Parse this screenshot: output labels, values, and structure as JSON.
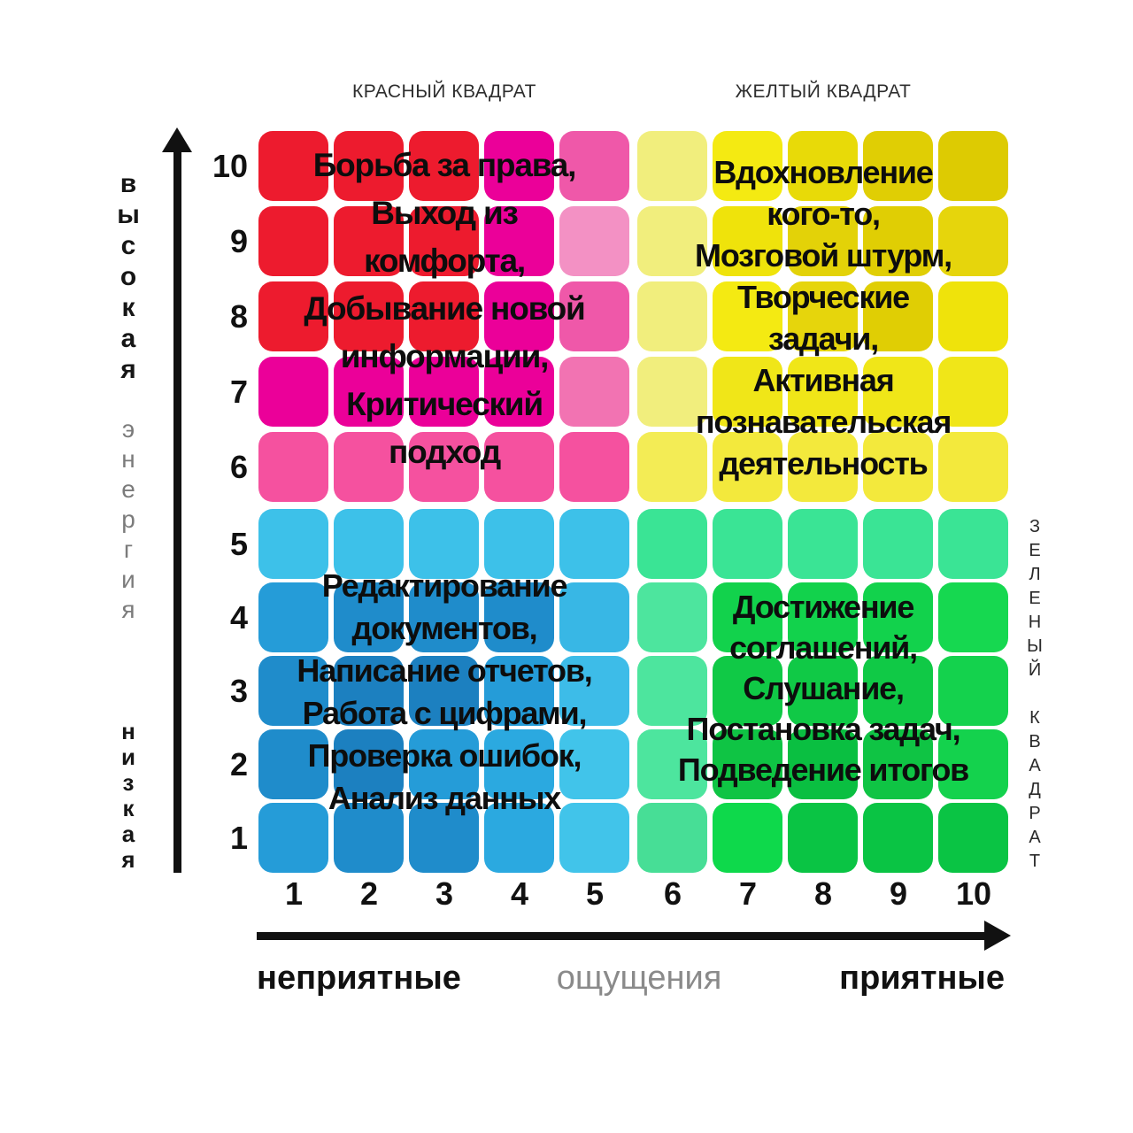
{
  "header": {
    "red_title": "КРАСНЫЙ КВАДРАТ",
    "yellow_title": "ЖЕЛТЫЙ КВАДРАТ"
  },
  "right_side_label": {
    "word1": "ЗЕЛЕНЫЙ",
    "word2": "КВАДРАТ"
  },
  "y_axis": {
    "high_label": "высокая",
    "axis_label": "энергия",
    "low_label": "низкая",
    "ticks": [
      "10",
      "9",
      "8",
      "7",
      "6",
      "5",
      "4",
      "3",
      "2",
      "1"
    ]
  },
  "x_axis": {
    "ticks": [
      "1",
      "2",
      "3",
      "4",
      "5",
      "6",
      "7",
      "8",
      "9",
      "10"
    ],
    "left_label": "неприятные",
    "axis_label": "ощущения",
    "right_label": "приятные"
  },
  "quadrants": {
    "red": {
      "title": "КРАСНЫЙ КВАДРАТ",
      "lines": [
        "Борьба за права,",
        "Выход из",
        "комфорта,",
        "Добывание новой",
        "информации,",
        "Критический",
        "подход"
      ]
    },
    "yellow": {
      "title": "ЖЕЛТЫЙ КВАДРАТ",
      "lines": [
        "Вдохновление",
        "кого-то,",
        "Мозговой штурм,",
        "Творческие",
        "задачи,",
        "Активная",
        "познавательская",
        "деятельность"
      ]
    },
    "blue": {
      "lines": [
        "Редактирование",
        "документов,",
        "Написание отчетов,",
        "Работа с цифрами,",
        "Проверка ошибок,",
        "Анализ данных"
      ]
    },
    "green": {
      "title": "ЗЕЛЕНЫЙ КВАДРАТ",
      "lines": [
        "Достижение",
        "соглашений,",
        "Слушание,",
        "Постановка задач,",
        "Подведение итогов"
      ]
    }
  },
  "palette": {
    "red": "#ED1B2E",
    "magenta": "#EB0099",
    "pink": "#F5519F",
    "pale_yellow": "#F1EE7D",
    "yellow": "#F3E93C",
    "dark_yellow": "#E0CE04",
    "light_blue": "#3DC1E9",
    "blue": "#1F8CCB",
    "mint": "#3AE495",
    "green": "#12D24C",
    "arrow_black": "#111111",
    "text_black": "#0d0d0d",
    "muted_gray": "#8a8a8a"
  },
  "grid": {
    "rows_order": [
      "10",
      "9",
      "8",
      "7",
      "6",
      "5",
      "4",
      "3",
      "2",
      "1"
    ],
    "cell_colors_by_row": [
      [
        "#ED1B2E",
        "#ED1B2E",
        "#ED1B2E",
        "#EB0099",
        "#EF58A9",
        "#F1EE7D",
        "#F4EA12",
        "#E8DA08",
        "#E0CE04",
        "#DDCB02"
      ],
      [
        "#ED1B2E",
        "#ED1B2E",
        "#ED1B2E",
        "#EB0099",
        "#F391C4",
        "#F1EE7D",
        "#EFE30B",
        "#E3D208",
        "#E0CE04",
        "#E6D50C"
      ],
      [
        "#ED1B2E",
        "#ED1B2E",
        "#ED1B2E",
        "#EB0099",
        "#EF58A9",
        "#F1EE7D",
        "#F4EA12",
        "#E6D50C",
        "#E0CE04",
        "#EFE30B"
      ],
      [
        "#EB0099",
        "#EB0099",
        "#EB0099",
        "#EB0099",
        "#F273B2",
        "#F1EE7D",
        "#F0E618",
        "#F0E618",
        "#F0E618",
        "#F0E618"
      ],
      [
        "#F5519F",
        "#F5519F",
        "#F5519F",
        "#F5519F",
        "#F5519F",
        "#F3EC55",
        "#F3E93C",
        "#F3E93C",
        "#F3E93C",
        "#F3E93C"
      ],
      [
        "#3DC1E9",
        "#3DC1E9",
        "#3DC1E9",
        "#3DC1E9",
        "#3DC1E9",
        "#3AE495",
        "#3AE495",
        "#3AE495",
        "#3AE495",
        "#3AE495"
      ],
      [
        "#259CD8",
        "#1F8CCB",
        "#1F8CCB",
        "#1F8CCB",
        "#38B7E5",
        "#4DE59E",
        "#12D24C",
        "#12D24C",
        "#12D24C",
        "#16D850"
      ],
      [
        "#1F8CCB",
        "#1C80C0",
        "#1C80C0",
        "#259CD8",
        "#3DBCE8",
        "#4DE59E",
        "#10C946",
        "#10C946",
        "#10C946",
        "#14D24D"
      ],
      [
        "#1F8CCB",
        "#1C80C0",
        "#259CD8",
        "#2BA9E0",
        "#41C4EA",
        "#4DE59E",
        "#0FC444",
        "#0ABF41",
        "#0FC444",
        "#14D24D"
      ],
      [
        "#259CD8",
        "#1F8CCB",
        "#1F8CCB",
        "#2BA9E0",
        "#41C4EA",
        "#47DE96",
        "#0ED94B",
        "#0AC444",
        "#0AC444",
        "#0AC444"
      ]
    ]
  }
}
